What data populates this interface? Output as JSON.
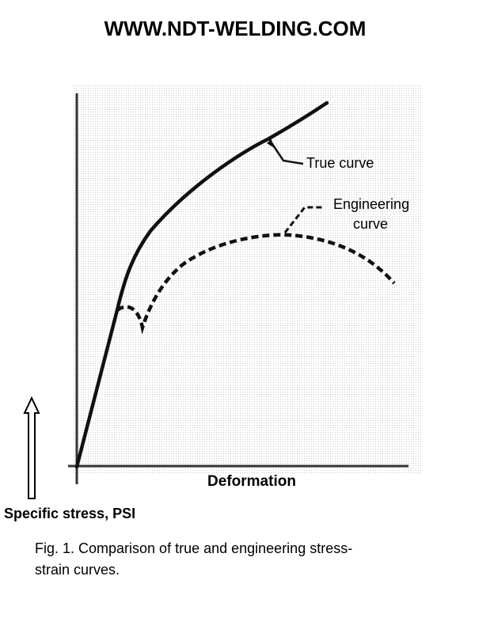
{
  "header": {
    "title": "WWW.NDT-WELDING.COM"
  },
  "figure": {
    "labels": {
      "true_curve": "True curve",
      "engineering_curve": [
        "Engineering",
        "curve"
      ]
    },
    "x_axis_label": "Deformation",
    "y_axis_label": "Specific stress, PSI"
  },
  "caption": [
    "Fig. 1. Comparison of true and engineering stress-",
    "strain curves."
  ]
}
